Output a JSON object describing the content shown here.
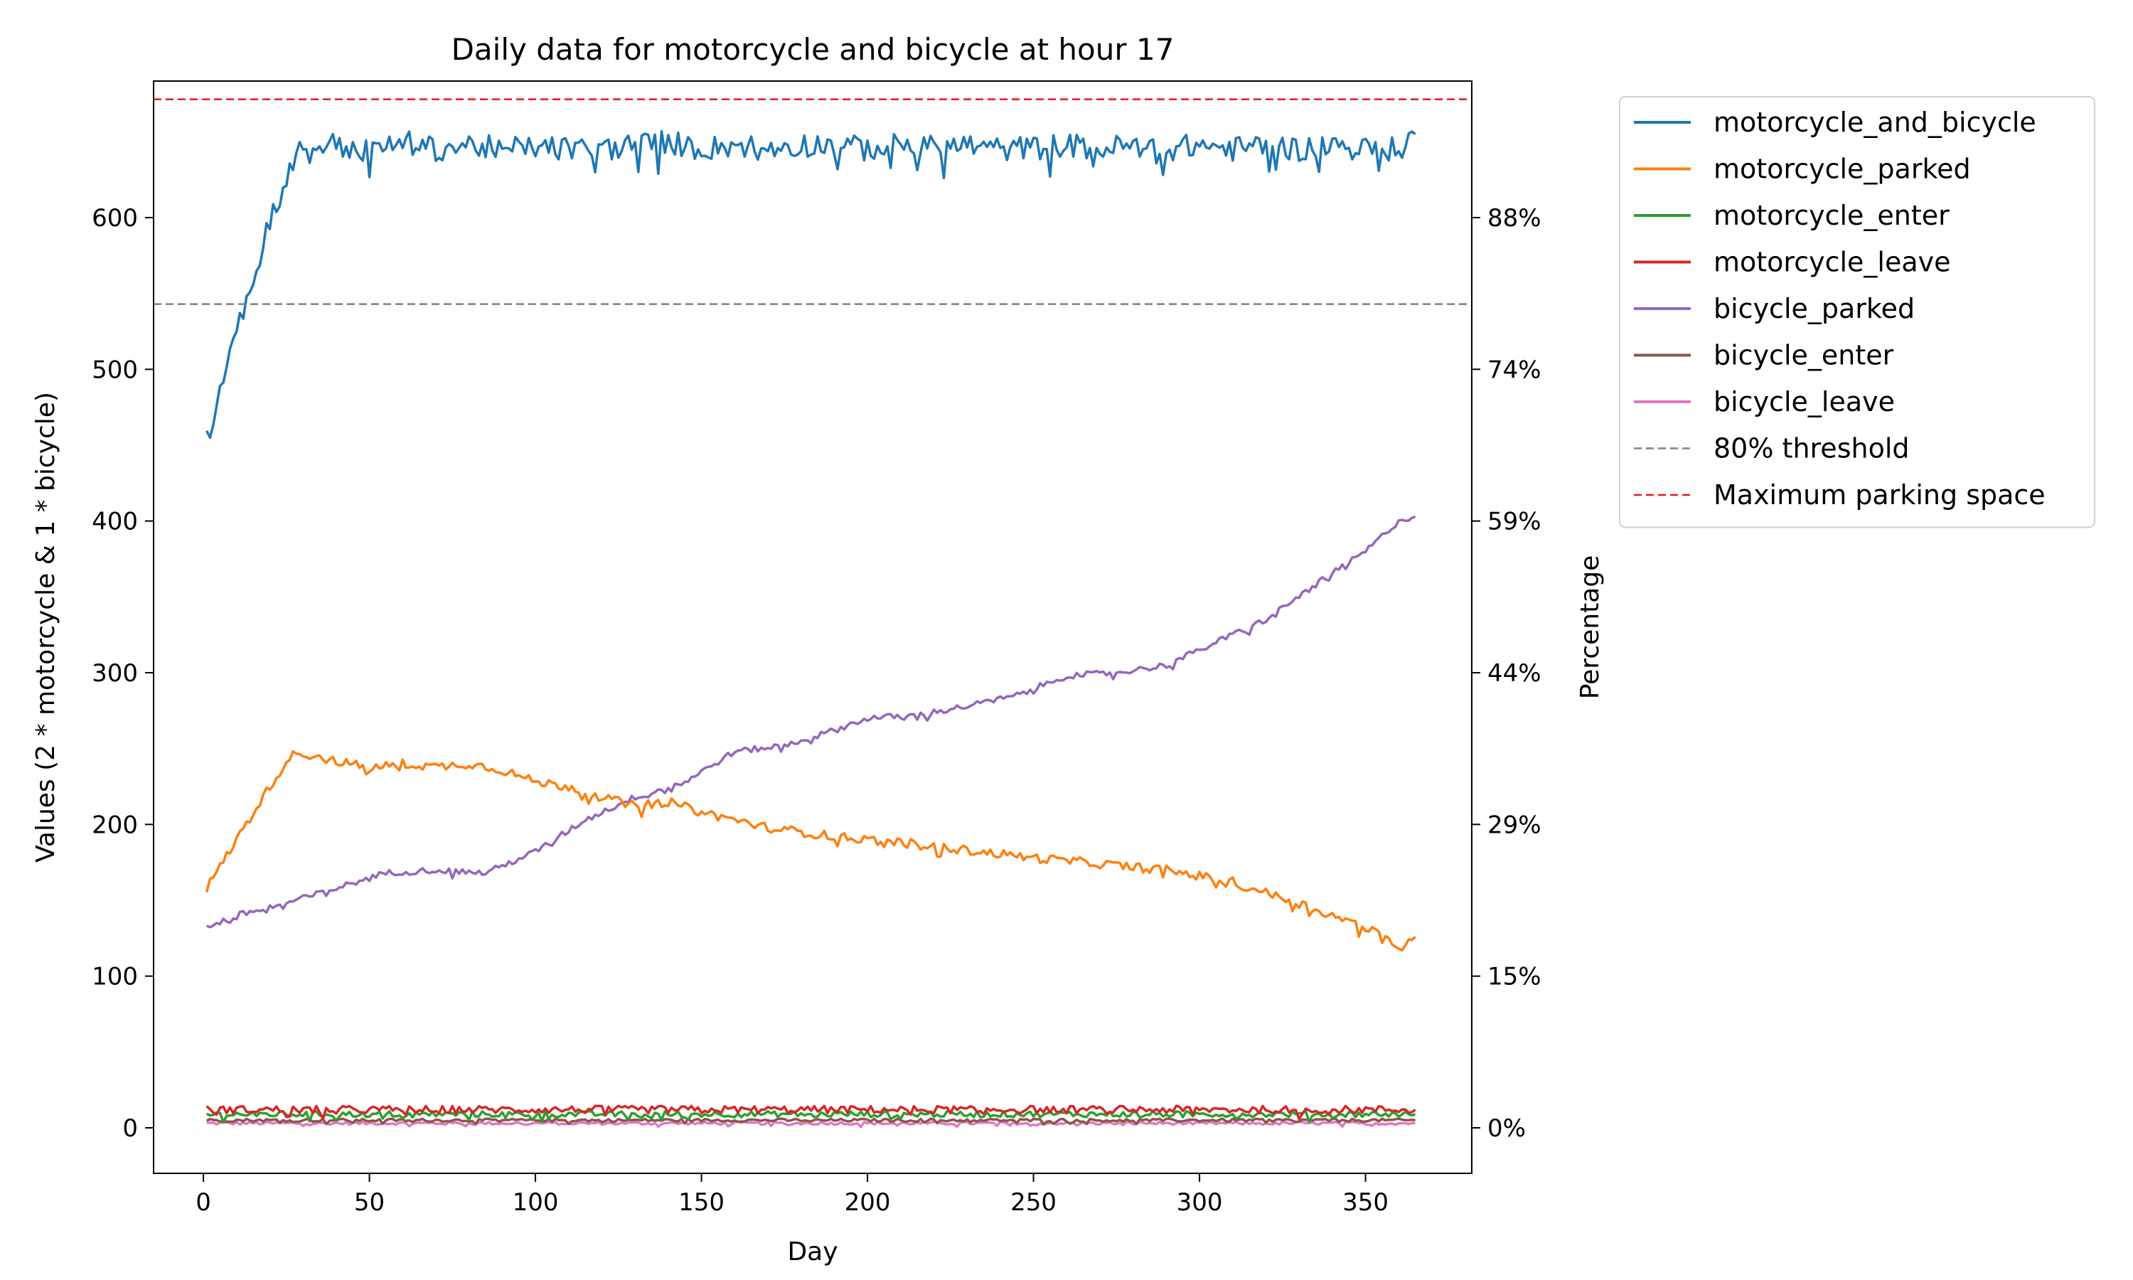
{
  "chart_data": {
    "type": "line",
    "title": "Daily data for motorcycle and bicycle at hour 17",
    "xlabel": "Day",
    "ylabel": "Values (2 * motorcycle & 1 * bicycle)",
    "ylabel_right": "Percentage",
    "xlim": [
      -15,
      382
    ],
    "ylim": [
      -30,
      690
    ],
    "xticks": [
      0,
      50,
      100,
      150,
      200,
      250,
      300,
      350
    ],
    "xtick_labels": [
      "0",
      "50",
      "100",
      "150",
      "200",
      "250",
      "300",
      "350"
    ],
    "yticks": [
      0,
      100,
      200,
      300,
      400,
      500,
      600
    ],
    "ytick_labels": [
      "0",
      "100",
      "200",
      "300",
      "400",
      "500",
      "600"
    ],
    "right_ticks_values": [
      0,
      100,
      200,
      300,
      400,
      500,
      600
    ],
    "right_tick_labels": [
      "0%",
      "15%",
      "29%",
      "44%",
      "59%",
      "74%",
      "88%"
    ],
    "series": [
      {
        "name": "motorcycle_and_bicycle",
        "color": "#1f77b4",
        "style": "solid",
        "x": [
          1,
          5,
          10,
          15,
          20,
          25,
          30,
          40,
          50,
          60,
          70,
          80,
          90,
          100,
          110,
          120,
          130,
          140,
          150,
          160,
          170,
          180,
          190,
          200,
          210,
          220,
          230,
          240,
          250,
          260,
          270,
          280,
          290,
          300,
          310,
          320,
          330,
          340,
          350,
          360,
          365
        ],
        "y": [
          452,
          490,
          530,
          555,
          600,
          625,
          648,
          648,
          643,
          650,
          645,
          648,
          645,
          647,
          645,
          645,
          648,
          650,
          645,
          648,
          646,
          648,
          648,
          645,
          648,
          646,
          648,
          645,
          646,
          648,
          645,
          648,
          645,
          648,
          645,
          648,
          645,
          648,
          645,
          645,
          655
        ],
        "noise": 8
      },
      {
        "name": "motorcycle_parked",
        "color": "#ff7f0e",
        "style": "solid",
        "x": [
          1,
          10,
          20,
          27,
          40,
          50,
          60,
          70,
          80,
          90,
          100,
          110,
          120,
          130,
          140,
          150,
          170,
          190,
          210,
          230,
          250,
          270,
          290,
          300,
          310,
          320,
          330,
          340,
          350,
          360,
          365
        ],
        "y": [
          158,
          190,
          225,
          248,
          242,
          237,
          240,
          238,
          240,
          236,
          228,
          225,
          218,
          212,
          215,
          208,
          198,
          192,
          188,
          183,
          178,
          174,
          170,
          166,
          162,
          155,
          148,
          140,
          132,
          120,
          126
        ],
        "noise": 3
      },
      {
        "name": "motorcycle_enter",
        "color": "#2ca02c",
        "style": "solid",
        "x": [
          1,
          100,
          200,
          300,
          365
        ],
        "y": [
          9,
          9,
          9,
          9,
          9
        ],
        "noise": 2
      },
      {
        "name": "motorcycle_leave",
        "color": "#d62728",
        "style": "solid",
        "x": [
          1,
          100,
          200,
          300,
          365
        ],
        "y": [
          12,
          12,
          12,
          12,
          12
        ],
        "noise": 2.5
      },
      {
        "name": "bicycle_parked",
        "color": "#9467bd",
        "style": "solid",
        "x": [
          1,
          10,
          25,
          40,
          55,
          70,
          85,
          100,
          115,
          130,
          145,
          160,
          175,
          190,
          200,
          215,
          230,
          245,
          260,
          275,
          290,
          305,
          320,
          335,
          350,
          360,
          365
        ],
        "y": [
          132,
          140,
          148,
          158,
          168,
          170,
          168,
          182,
          203,
          218,
          228,
          248,
          252,
          262,
          270,
          272,
          278,
          285,
          298,
          300,
          305,
          320,
          335,
          358,
          380,
          400,
          403
        ],
        "noise": 2
      },
      {
        "name": "bicycle_enter",
        "color": "#8c564b",
        "style": "solid",
        "x": [
          1,
          100,
          200,
          300,
          365
        ],
        "y": [
          5,
          5,
          5,
          5,
          5
        ],
        "noise": 1
      },
      {
        "name": "bicycle_leave",
        "color": "#e377c2",
        "style": "solid",
        "x": [
          1,
          100,
          200,
          300,
          365
        ],
        "y": [
          3,
          3,
          3,
          3,
          3
        ],
        "noise": 1
      },
      {
        "name": "80% threshold",
        "color": "#808080",
        "style": "dashed",
        "hline": 543
      },
      {
        "name": "Maximum parking space",
        "color": "#e41a1c",
        "style": "dashed",
        "hline": 678
      }
    ],
    "legend_position": "outside top-right"
  }
}
